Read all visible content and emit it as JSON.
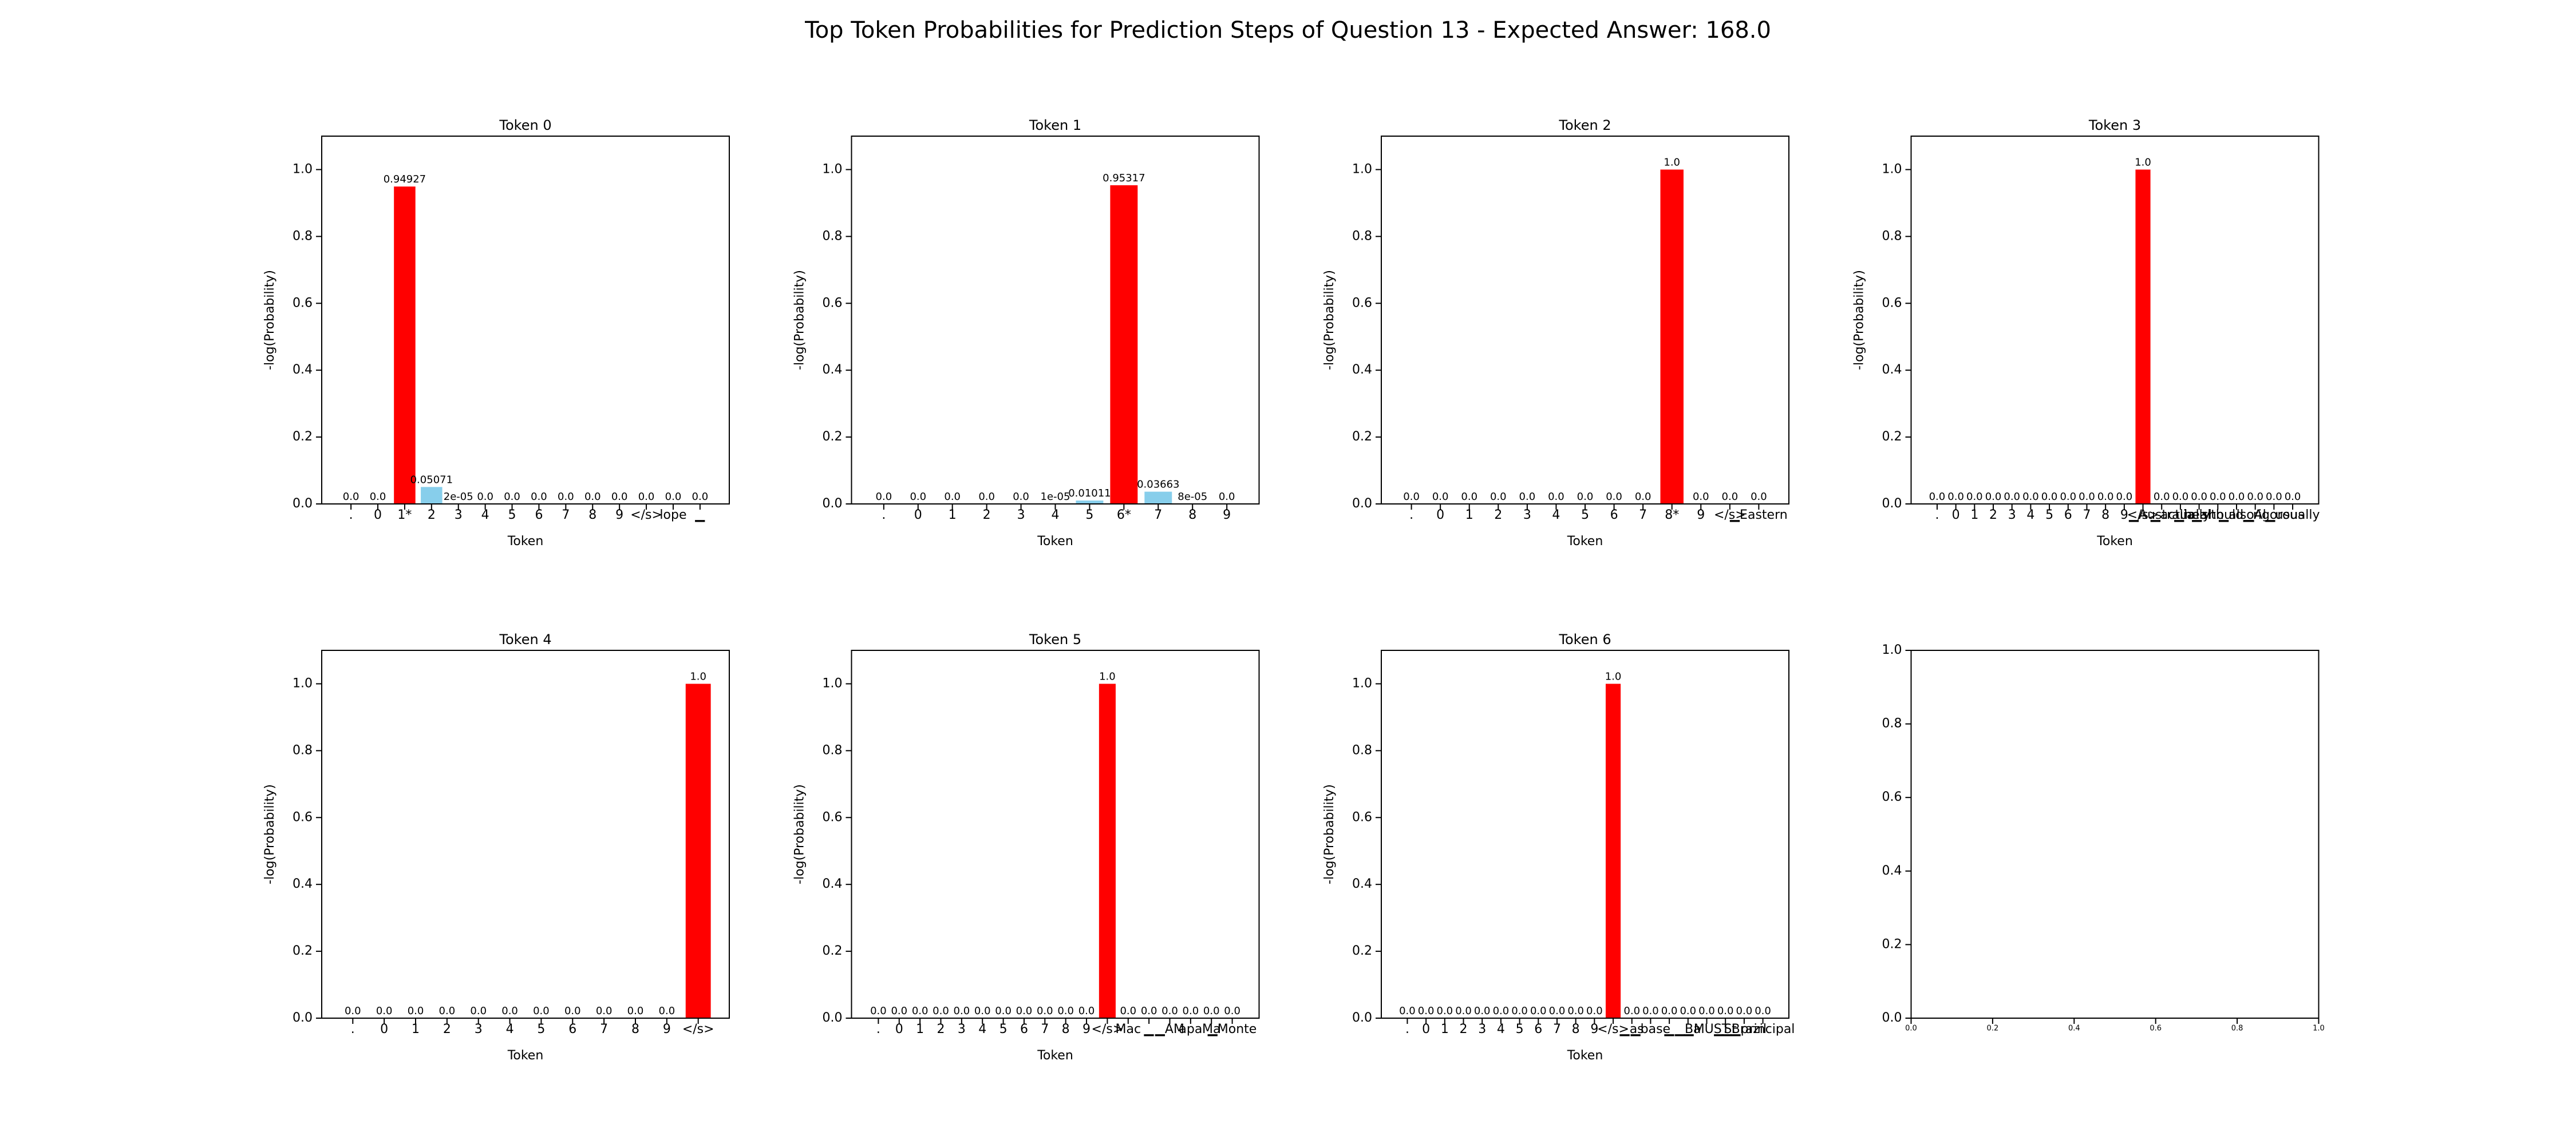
{
  "title": "Top Token Probabilities for Prediction Steps of Question 13 - Expected Answer: 168.0",
  "chart_data": [
    {
      "type": "bar",
      "title": "Token 0",
      "x_label": "Token",
      "y_label": "-log(Probability)",
      "categories": [
        ".",
        "0",
        "1*",
        "2",
        "3",
        "4",
        "5",
        "6",
        "7",
        "8",
        "9",
        "</s>",
        "lope",
        "▁"
      ],
      "values": [
        0,
        0,
        0.94927,
        0.05071,
        2e-05,
        0,
        0,
        0,
        0,
        0,
        0,
        0,
        0,
        0
      ],
      "value_labels": [
        "0.0",
        "0.0",
        "0.94927",
        "0.05071",
        "2e-05",
        "0.0",
        "0.0",
        "0.0",
        "0.0",
        "0.0",
        "0.0",
        "0.0",
        "0.0",
        "0.0"
      ],
      "colors": [
        "#87ceeb",
        "#87ceeb",
        "#ff0000",
        "#87ceeb",
        "#87ceeb",
        "#87ceeb",
        "#87ceeb",
        "#87ceeb",
        "#87ceeb",
        "#87ceeb",
        "#87ceeb",
        "#87ceeb",
        "#87ceeb",
        "#87ceeb"
      ],
      "ylim": [
        0,
        1.1
      ],
      "yticks": [
        {
          "value": 0,
          "label": "0.0"
        },
        0.2,
        0.4,
        0.6,
        0.8,
        {
          "value": 1,
          "label": "1.0"
        }
      ]
    },
    {
      "type": "bar",
      "title": "Token 1",
      "x_label": "Token",
      "y_label": "-log(Probability)",
      "categories": [
        ".",
        "0",
        "1",
        "2",
        "3",
        "4",
        "5",
        "6*",
        "7",
        "8",
        "9"
      ],
      "values": [
        0,
        0,
        0,
        0,
        0,
        1e-05,
        0.01011,
        0.95317,
        0.03663,
        8e-05,
        0
      ],
      "value_labels": [
        "0.0",
        "0.0",
        "0.0",
        "0.0",
        "0.0",
        "1e-05",
        "0.01011",
        "0.95317",
        "0.03663",
        "8e-05",
        "0.0"
      ],
      "colors": [
        "#87ceeb",
        "#87ceeb",
        "#87ceeb",
        "#87ceeb",
        "#87ceeb",
        "#87ceeb",
        "#87ceeb",
        "#ff0000",
        "#87ceeb",
        "#87ceeb",
        "#87ceeb"
      ],
      "ylim": [
        0,
        1.1
      ],
      "yticks": [
        {
          "value": 0,
          "label": "0.0"
        },
        0.2,
        0.4,
        0.6,
        0.8,
        {
          "value": 1,
          "label": "1.0"
        }
      ]
    },
    {
      "type": "bar",
      "title": "Token 2",
      "x_label": "Token",
      "y_label": "-log(Probability)",
      "categories": [
        ".",
        "0",
        "1",
        "2",
        "3",
        "4",
        "5",
        "6",
        "7",
        "8*",
        "9",
        "</s>",
        "▁Eastern"
      ],
      "values": [
        0,
        0,
        0,
        0,
        0,
        0,
        0,
        0,
        0,
        1,
        0,
        0,
        0
      ],
      "value_labels": [
        "0.0",
        "0.0",
        "0.0",
        "0.0",
        "0.0",
        "0.0",
        "0.0",
        "0.0",
        "0.0",
        "1.0",
        "0.0",
        "0.0",
        "0.0"
      ],
      "colors": [
        "#87ceeb",
        "#87ceeb",
        "#87ceeb",
        "#87ceeb",
        "#87ceeb",
        "#87ceeb",
        "#87ceeb",
        "#87ceeb",
        "#87ceeb",
        "#ff0000",
        "#87ceeb",
        "#87ceeb",
        "#87ceeb"
      ],
      "ylim": [
        0,
        1.1
      ],
      "yticks": [
        {
          "value": 0,
          "label": "0.0"
        },
        0.2,
        0.4,
        0.6,
        0.8,
        {
          "value": 1,
          "label": "1.0"
        }
      ]
    },
    {
      "type": "bar",
      "title": "Token 3",
      "x_label": "Token",
      "y_label": "-log(Probability)",
      "categories": [
        ".",
        "0",
        "1",
        "2",
        "3",
        "4",
        "5",
        "6",
        "7",
        "8",
        "9",
        "</s>",
        "▁Australia",
        "▁actually",
        "▁health",
        "▁should",
        "▁also",
        "▁Al",
        "▁rigorous",
        "▁usually"
      ],
      "values": [
        0,
        0,
        0,
        0,
        0,
        0,
        0,
        0,
        0,
        0,
        0,
        1,
        0,
        0,
        0,
        0,
        0,
        0,
        0,
        0
      ],
      "value_labels": [
        "0.0",
        "0.0",
        "0.0",
        "0.0",
        "0.0",
        "0.0",
        "0.0",
        "0.0",
        "0.0",
        "0.0",
        "0.0",
        "1.0",
        "0.0",
        "0.0",
        "0.0",
        "0.0",
        "0.0",
        "0.0",
        "0.0",
        "0.0"
      ],
      "colors": [
        "#87ceeb",
        "#87ceeb",
        "#87ceeb",
        "#87ceeb",
        "#87ceeb",
        "#87ceeb",
        "#87ceeb",
        "#87ceeb",
        "#87ceeb",
        "#87ceeb",
        "#87ceeb",
        "#ff0000",
        "#87ceeb",
        "#87ceeb",
        "#87ceeb",
        "#87ceeb",
        "#87ceeb",
        "#87ceeb",
        "#87ceeb",
        "#87ceeb"
      ],
      "ylim": [
        0,
        1.1
      ],
      "yticks": [
        {
          "value": 0,
          "label": "0.0"
        },
        0.2,
        0.4,
        0.6,
        0.8,
        {
          "value": 1,
          "label": "1.0"
        }
      ]
    },
    {
      "type": "bar",
      "title": "Token 4",
      "x_label": "Token",
      "y_label": "-log(Probability)",
      "categories": [
        ".",
        "0",
        "1",
        "2",
        "3",
        "4",
        "5",
        "6",
        "7",
        "8",
        "9",
        "</s>"
      ],
      "values": [
        0,
        0,
        0,
        0,
        0,
        0,
        0,
        0,
        0,
        0,
        0,
        1
      ],
      "value_labels": [
        "0.0",
        "0.0",
        "0.0",
        "0.0",
        "0.0",
        "0.0",
        "0.0",
        "0.0",
        "0.0",
        "0.0",
        "0.0",
        "1.0"
      ],
      "colors": [
        "#87ceeb",
        "#87ceeb",
        "#87ceeb",
        "#87ceeb",
        "#87ceeb",
        "#87ceeb",
        "#87ceeb",
        "#87ceeb",
        "#87ceeb",
        "#87ceeb",
        "#87ceeb",
        "#ff0000"
      ],
      "ylim": [
        0,
        1.1
      ],
      "yticks": [
        {
          "value": 0,
          "label": "0.0"
        },
        0.2,
        0.4,
        0.6,
        0.8,
        {
          "value": 1,
          "label": "1.0"
        }
      ]
    },
    {
      "type": "bar",
      "title": "Token 5",
      "x_label": "Token",
      "y_label": "-log(Probability)",
      "categories": [
        ".",
        "0",
        "1",
        "2",
        "3",
        "4",
        "5",
        "6",
        "7",
        "8",
        "9",
        "</s>",
        "Mac",
        "▁",
        "▁AM",
        "apa",
        "Ma",
        "▁Monte"
      ],
      "values": [
        0,
        0,
        0,
        0,
        0,
        0,
        0,
        0,
        0,
        0,
        0,
        1,
        0,
        0,
        0,
        0,
        0,
        0
      ],
      "value_labels": [
        "0.0",
        "0.0",
        "0.0",
        "0.0",
        "0.0",
        "0.0",
        "0.0",
        "0.0",
        "0.0",
        "0.0",
        "0.0",
        "1.0",
        "0.0",
        "0.0",
        "0.0",
        "0.0",
        "0.0",
        "0.0"
      ],
      "colors": [
        "#87ceeb",
        "#87ceeb",
        "#87ceeb",
        "#87ceeb",
        "#87ceeb",
        "#87ceeb",
        "#87ceeb",
        "#87ceeb",
        "#87ceeb",
        "#87ceeb",
        "#87ceeb",
        "#ff0000",
        "#87ceeb",
        "#87ceeb",
        "#87ceeb",
        "#87ceeb",
        "#87ceeb",
        "#87ceeb"
      ],
      "ylim": [
        0,
        1.1
      ],
      "yticks": [
        {
          "value": 0,
          "label": "0.0"
        },
        0.2,
        0.4,
        0.6,
        0.8,
        {
          "value": 1,
          "label": "1.0"
        }
      ]
    },
    {
      "type": "bar",
      "title": "Token 6",
      "x_label": "Token",
      "y_label": "-log(Probability)",
      "categories": [
        ".",
        "0",
        "1",
        "2",
        "3",
        "4",
        "5",
        "6",
        "7",
        "8",
        "9",
        "</s>",
        "▁as",
        "▁base",
        "▁",
        "▁Ba",
        "▁MUST",
        "▁St",
        "▁Brazil",
        "▁principal"
      ],
      "values": [
        0,
        0,
        0,
        0,
        0,
        0,
        0,
        0,
        0,
        0,
        0,
        1,
        0,
        0,
        0,
        0,
        0,
        0,
        0,
        0
      ],
      "value_labels": [
        "0.0",
        "0.0",
        "0.0",
        "0.0",
        "0.0",
        "0.0",
        "0.0",
        "0.0",
        "0.0",
        "0.0",
        "0.0",
        "1.0",
        "0.0",
        "0.0",
        "0.0",
        "0.0",
        "0.0",
        "0.0",
        "0.0",
        "0.0"
      ],
      "colors": [
        "#87ceeb",
        "#87ceeb",
        "#87ceeb",
        "#87ceeb",
        "#87ceeb",
        "#87ceeb",
        "#87ceeb",
        "#87ceeb",
        "#87ceeb",
        "#87ceeb",
        "#87ceeb",
        "#ff0000",
        "#87ceeb",
        "#87ceeb",
        "#87ceeb",
        "#87ceeb",
        "#87ceeb",
        "#87ceeb",
        "#87ceeb",
        "#87ceeb"
      ],
      "ylim": [
        0,
        1.1
      ],
      "yticks": [
        {
          "value": 0,
          "label": "0.0"
        },
        0.2,
        0.4,
        0.6,
        0.8,
        {
          "value": 1,
          "label": "1.0"
        }
      ]
    },
    {
      "type": "axes",
      "xlim": [
        0,
        1
      ],
      "xticks": [
        {
          "value": 0,
          "label": "0.0"
        },
        0.2,
        0.4,
        0.6,
        0.8,
        {
          "value": 1,
          "label": "1.0"
        }
      ],
      "ylim": [
        0,
        1
      ],
      "yticks": [
        {
          "value": 0,
          "label": "0.0"
        },
        0.2,
        0.4,
        0.6,
        0.8,
        {
          "value": 1,
          "label": "1.0"
        }
      ]
    }
  ]
}
